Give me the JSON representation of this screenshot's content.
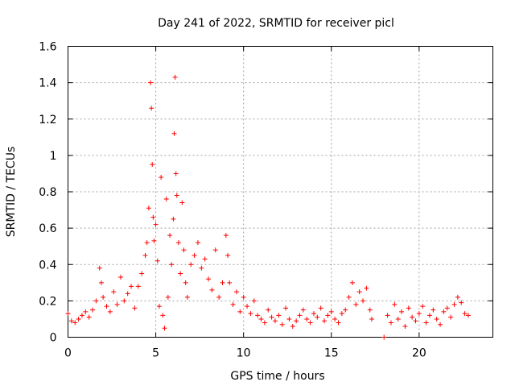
{
  "chart_data": {
    "type": "scatter",
    "title": "Day 241 of 2022, SRMTID for receiver picl",
    "xlabel": "GPS time / hours",
    "ylabel": "SRMTID / TECUs",
    "xlim": [
      0,
      24.2
    ],
    "ylim": [
      0,
      1.6
    ],
    "xticks": [
      0,
      5,
      10,
      15,
      20
    ],
    "xtick_labels": [
      "0",
      "5",
      "10",
      "15",
      "20"
    ],
    "yticks": [
      0,
      0.2,
      0.4,
      0.6,
      0.8,
      1.0,
      1.2,
      1.4,
      1.6
    ],
    "ytick_labels": [
      "0",
      "0.2",
      "0.4",
      "0.6",
      "0.8",
      "1",
      "1.2",
      "1.4",
      "1.6"
    ],
    "grid": true,
    "marker": "+",
    "series": [
      {
        "name": "picl",
        "color": "#ff0000",
        "x": [
          0.0,
          0.2,
          0.4,
          0.6,
          0.8,
          1.0,
          1.2,
          1.4,
          1.6,
          1.8,
          1.9,
          2.0,
          2.2,
          2.4,
          2.6,
          2.8,
          3.0,
          3.2,
          3.4,
          3.6,
          3.8,
          4.0,
          4.2,
          4.4,
          4.5,
          4.6,
          4.7,
          4.75,
          4.8,
          4.85,
          4.9,
          5.0,
          5.1,
          5.2,
          5.3,
          5.4,
          5.5,
          5.6,
          5.7,
          5.8,
          5.9,
          6.0,
          6.05,
          6.1,
          6.15,
          6.2,
          6.3,
          6.4,
          6.5,
          6.6,
          6.7,
          6.8,
          7.0,
          7.2,
          7.4,
          7.6,
          7.8,
          8.0,
          8.2,
          8.4,
          8.6,
          8.8,
          9.0,
          9.1,
          9.2,
          9.4,
          9.6,
          9.8,
          10.0,
          10.2,
          10.4,
          10.6,
          10.8,
          11.0,
          11.2,
          11.4,
          11.6,
          11.8,
          12.0,
          12.2,
          12.4,
          12.6,
          12.8,
          13.0,
          13.2,
          13.4,
          13.6,
          13.8,
          14.0,
          14.2,
          14.4,
          14.6,
          14.8,
          15.0,
          15.2,
          15.4,
          15.6,
          15.8,
          16.0,
          16.2,
          16.4,
          16.6,
          16.8,
          17.0,
          17.2,
          17.3,
          18.0,
          18.2,
          18.4,
          18.6,
          18.8,
          19.0,
          19.2,
          19.4,
          19.6,
          19.8,
          20.0,
          20.2,
          20.4,
          20.6,
          20.8,
          21.0,
          21.2,
          21.4,
          21.6,
          21.8,
          22.0,
          22.2,
          22.4,
          22.6,
          22.8
        ],
        "y": [
          0.13,
          0.09,
          0.08,
          0.1,
          0.12,
          0.14,
          0.11,
          0.15,
          0.2,
          0.38,
          0.3,
          0.22,
          0.17,
          0.14,
          0.25,
          0.18,
          0.33,
          0.2,
          0.24,
          0.28,
          0.16,
          0.28,
          0.35,
          0.45,
          0.52,
          0.71,
          1.4,
          1.26,
          0.95,
          0.66,
          0.53,
          0.62,
          0.42,
          0.17,
          0.88,
          0.12,
          0.05,
          0.76,
          0.22,
          0.56,
          0.4,
          0.65,
          1.12,
          1.43,
          0.9,
          0.78,
          0.52,
          0.35,
          0.74,
          0.48,
          0.3,
          0.22,
          0.4,
          0.45,
          0.52,
          0.38,
          0.43,
          0.32,
          0.26,
          0.48,
          0.22,
          0.3,
          0.56,
          0.45,
          0.3,
          0.18,
          0.25,
          0.14,
          0.22,
          0.17,
          0.13,
          0.2,
          0.12,
          0.1,
          0.08,
          0.15,
          0.11,
          0.09,
          0.12,
          0.07,
          0.16,
          0.1,
          0.06,
          0.09,
          0.12,
          0.15,
          0.1,
          0.08,
          0.13,
          0.11,
          0.16,
          0.09,
          0.12,
          0.14,
          0.1,
          0.08,
          0.13,
          0.15,
          0.22,
          0.3,
          0.18,
          0.25,
          0.2,
          0.27,
          0.15,
          0.1,
          0.0,
          0.12,
          0.08,
          0.18,
          0.1,
          0.14,
          0.06,
          0.16,
          0.11,
          0.09,
          0.13,
          0.17,
          0.08,
          0.12,
          0.15,
          0.1,
          0.07,
          0.14,
          0.16,
          0.11,
          0.18,
          0.22,
          0.19,
          0.13,
          0.12
        ]
      }
    ]
  }
}
